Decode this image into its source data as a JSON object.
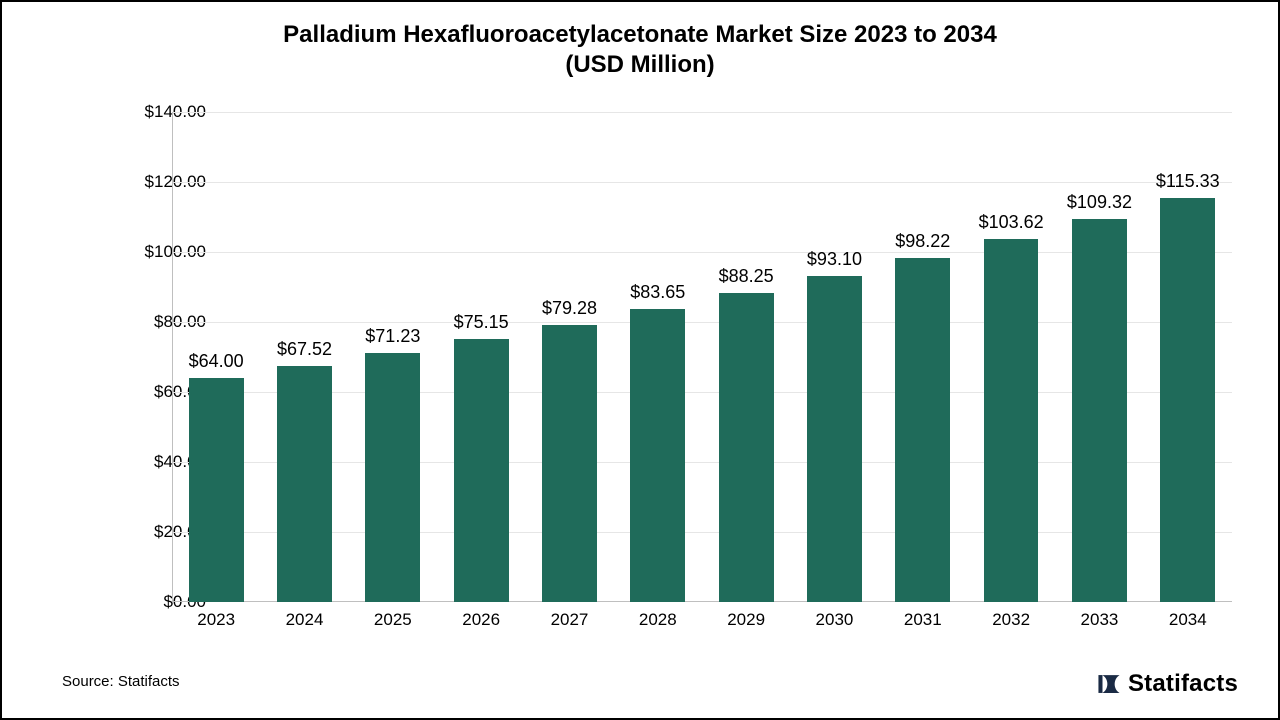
{
  "chart": {
    "type": "bar",
    "title_line1": "Palladium Hexafluoroacetylacetonate Market Size 2023 to 2034",
    "title_line2": "(USD Million)",
    "title_fontsize": 24,
    "categories": [
      "2023",
      "2024",
      "2025",
      "2026",
      "2027",
      "2028",
      "2029",
      "2030",
      "2031",
      "2032",
      "2033",
      "2034"
    ],
    "values": [
      64.0,
      67.52,
      71.23,
      75.15,
      79.28,
      83.65,
      88.25,
      93.1,
      98.22,
      103.62,
      109.32,
      115.33
    ],
    "value_labels": [
      "$64.00",
      "$67.52",
      "$71.23",
      "$75.15",
      "$79.28",
      "$83.65",
      "$88.25",
      "$93.10",
      "$98.22",
      "$103.62",
      "$109.32",
      "$115.33"
    ],
    "bar_color": "#1f6b5a",
    "ylim": [
      0,
      140
    ],
    "ytick_step": 20,
    "ytick_labels": [
      "$0.00",
      "$20.00",
      "$40.00",
      "$60.00",
      "$80.00",
      "$100.00",
      "$120.00",
      "$140.00"
    ],
    "grid_color": "#e6e6e6",
    "axis_color": "#bfbfbf",
    "background_color": "#ffffff",
    "tick_label_fontsize": 17,
    "value_label_fontsize": 18,
    "x_label_fontsize": 17,
    "bar_width_ratio": 0.62
  },
  "footer": {
    "source_text": "Source: Statifacts",
    "source_fontsize": 15,
    "brand_text": "Statifacts",
    "brand_fontsize": 24,
    "brand_icon_color": "#1a2a44"
  }
}
